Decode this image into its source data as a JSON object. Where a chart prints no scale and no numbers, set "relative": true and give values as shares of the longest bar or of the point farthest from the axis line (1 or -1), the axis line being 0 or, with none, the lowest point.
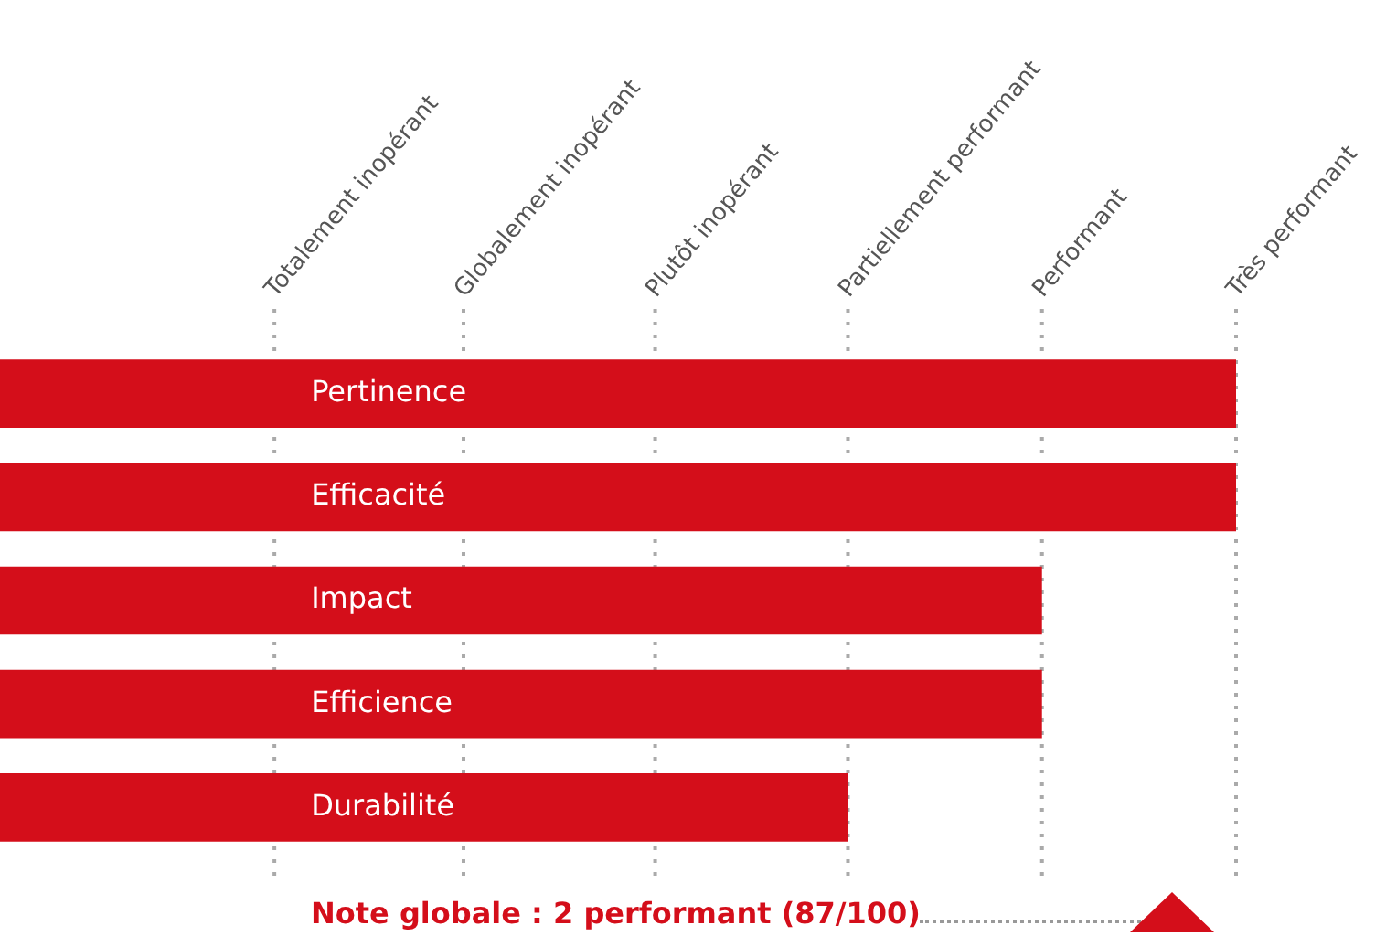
{
  "chart_data": {
    "type": "bar",
    "orientation": "horizontal",
    "relative": true,
    "categories": [
      "Pertinence",
      "Efficacité",
      "Impact",
      "Efficience",
      "Durabilité"
    ],
    "values": [
      1,
      1,
      0.843,
      0.843,
      0.686
    ],
    "color": "#d40e1a",
    "ref_lines": [
      {
        "axis": "x",
        "value": 0.222,
        "label": "Totalement inopérant",
        "color": "#aaaaaa",
        "line_style": "dotted"
      },
      {
        "axis": "x",
        "value": 0.375,
        "label": "Globalement inopérant",
        "color": "#aaaaaa",
        "line_style": "dotted"
      },
      {
        "axis": "x",
        "value": 0.53,
        "label": "Plutôt inopérant",
        "color": "#aaaaaa",
        "line_style": "dotted"
      },
      {
        "axis": "x",
        "value": 0.686,
        "label": "Partiellement performant",
        "color": "#aaaaaa",
        "line_style": "dotted"
      },
      {
        "axis": "x",
        "value": 0.843,
        "label": "Performant",
        "color": "#aaaaaa",
        "line_style": "dotted"
      },
      {
        "axis": "x",
        "value": 1,
        "label": "Très performant",
        "color": "#aaaaaa",
        "line_style": "dotted"
      }
    ],
    "legend": false,
    "annotations": [
      "Note globale : 2 performant (87/100)"
    ]
  }
}
